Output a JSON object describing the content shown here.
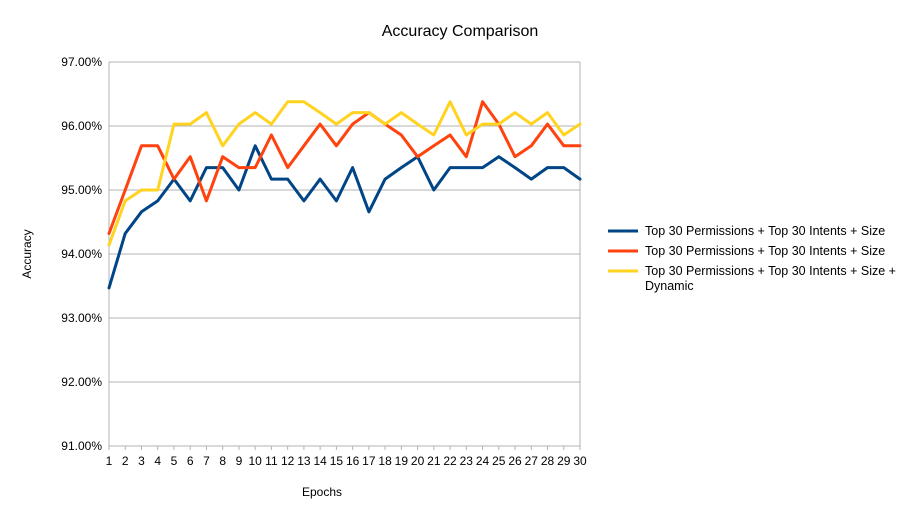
{
  "chart_data": {
    "type": "line",
    "title": "Accuracy Comparison",
    "xlabel": "Epochs",
    "ylabel": "Accuracy",
    "ylim": [
      91,
      97
    ],
    "yticks": [
      "91.00%",
      "92.00%",
      "93.00%",
      "94.00%",
      "95.00%",
      "96.00%",
      "97.00%"
    ],
    "grid": "horizontal",
    "legend_position": "right",
    "categories": [
      "1",
      "2",
      "3",
      "4",
      "5",
      "6",
      "7",
      "8",
      "9",
      "10",
      "11",
      "12",
      "13",
      "14",
      "15",
      "16",
      "17",
      "18",
      "19",
      "20",
      "21",
      "22",
      "23",
      "24",
      "25",
      "26",
      "27",
      "28",
      "29",
      "30"
    ],
    "series": [
      {
        "name": "Top 30 Permissions + Top 30 Intents + Size",
        "color": "#004586",
        "values": [
          93.47,
          94.32,
          94.66,
          94.83,
          95.17,
          94.83,
          95.35,
          95.35,
          95.0,
          95.69,
          95.17,
          95.17,
          94.83,
          95.17,
          94.83,
          95.35,
          94.66,
          95.17,
          95.35,
          95.52,
          95.0,
          95.35,
          95.35,
          95.35,
          95.52,
          95.35,
          95.17,
          95.35,
          95.35,
          95.17
        ]
      },
      {
        "name": "Top 30 Permissions + Top 30 Intents + Size",
        "color": "#ff420e",
        "values": [
          94.32,
          95.0,
          95.69,
          95.69,
          95.17,
          95.52,
          94.83,
          95.52,
          95.35,
          95.35,
          95.86,
          95.35,
          95.69,
          96.03,
          95.69,
          96.03,
          96.21,
          96.03,
          95.86,
          95.52,
          95.69,
          95.86,
          95.52,
          96.38,
          96.03,
          95.52,
          95.69,
          96.03,
          95.69,
          95.69
        ]
      },
      {
        "name": "Top 30 Permissions + Top 30 Intents + Size + Dynamic",
        "color": "#ffd320",
        "values": [
          94.14,
          94.83,
          95.0,
          95.0,
          96.03,
          96.03,
          96.21,
          95.69,
          96.03,
          96.21,
          96.03,
          96.38,
          96.38,
          96.21,
          96.03,
          96.21,
          96.21,
          96.03,
          96.21,
          96.03,
          95.86,
          96.38,
          95.86,
          96.03,
          96.03,
          96.21,
          96.03,
          96.21,
          95.86,
          96.03
        ]
      }
    ]
  }
}
